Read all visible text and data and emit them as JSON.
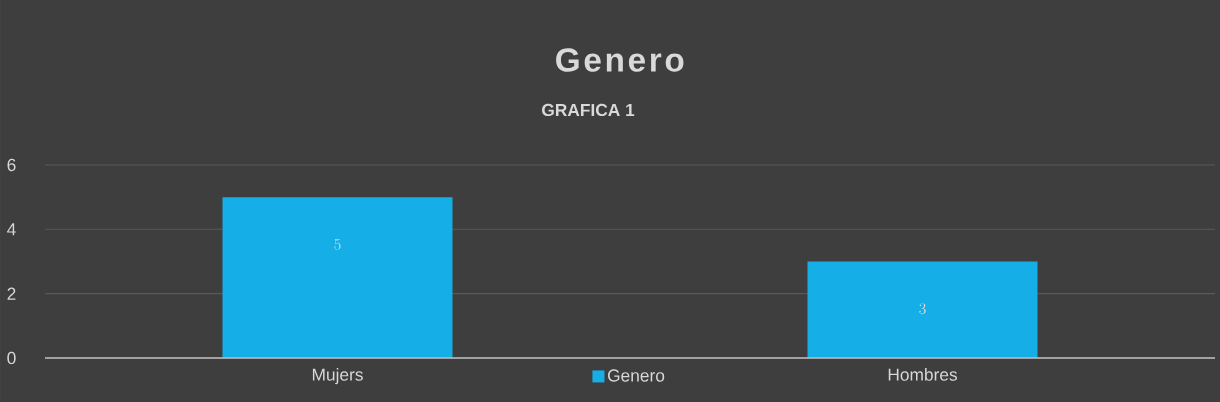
{
  "chart_data": {
    "type": "bar",
    "title": "Genero",
    "subtitle": "GRAFICA 1",
    "categories": [
      "Mujers",
      "Hombres"
    ],
    "series": [
      {
        "name": "Genero",
        "color": "#16aee6",
        "values": [
          5,
          3
        ]
      }
    ],
    "ylim": [
      0,
      6
    ],
    "yticks": [
      0,
      2,
      4,
      6
    ],
    "grid": "y",
    "legend": "bottom",
    "data_labels": true
  }
}
